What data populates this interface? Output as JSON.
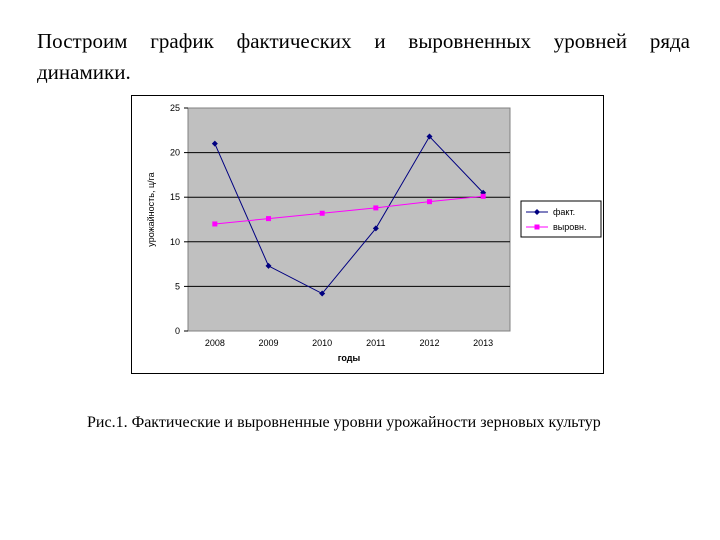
{
  "heading": {
    "line1": "Построим график фактических и выровненных уровней ряда",
    "line2": "динамики."
  },
  "caption": "Рис.1. Фактические и выровненные уровни урожайности зерновых культур",
  "chart_data": {
    "type": "line",
    "title": "",
    "xlabel": "годы",
    "ylabel": "урожайность, ц/га",
    "x": [
      "2008",
      "2009",
      "2010",
      "2011",
      "2012",
      "2013"
    ],
    "ylim": [
      0,
      25
    ],
    "yticks": [
      "0",
      "5",
      "10",
      "15",
      "20",
      "25"
    ],
    "grid": true,
    "legend_position": "right",
    "plot_background": "#c0c0c0",
    "series": [
      {
        "name": "факт.",
        "values": [
          21.0,
          7.3,
          4.2,
          11.5,
          21.8,
          15.5
        ],
        "color": "#000080",
        "marker": "diamond"
      },
      {
        "name": "выровн.",
        "values": [
          12.0,
          12.6,
          13.2,
          13.8,
          14.5,
          15.1
        ],
        "color": "#ff00ff",
        "marker": "square"
      }
    ]
  }
}
